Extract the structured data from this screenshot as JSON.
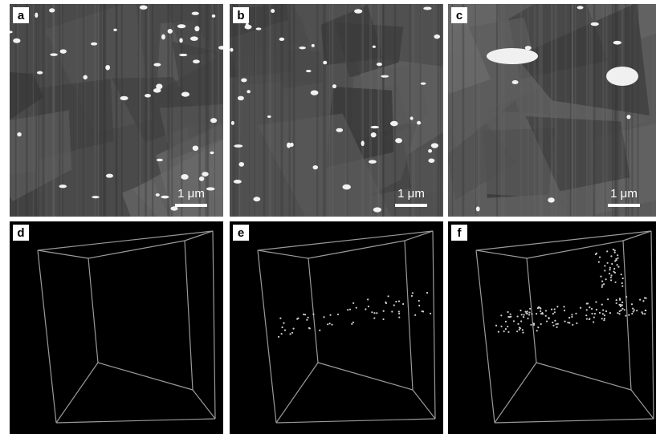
{
  "panels": [
    {
      "label": "a",
      "scale_bar": "1 μm"
    },
    {
      "label": "b",
      "scale_bar": "1 μm"
    },
    {
      "label": "c",
      "scale_bar": "1 μm"
    },
    {
      "label": "d"
    },
    {
      "label": "e"
    },
    {
      "label": "f"
    }
  ]
}
